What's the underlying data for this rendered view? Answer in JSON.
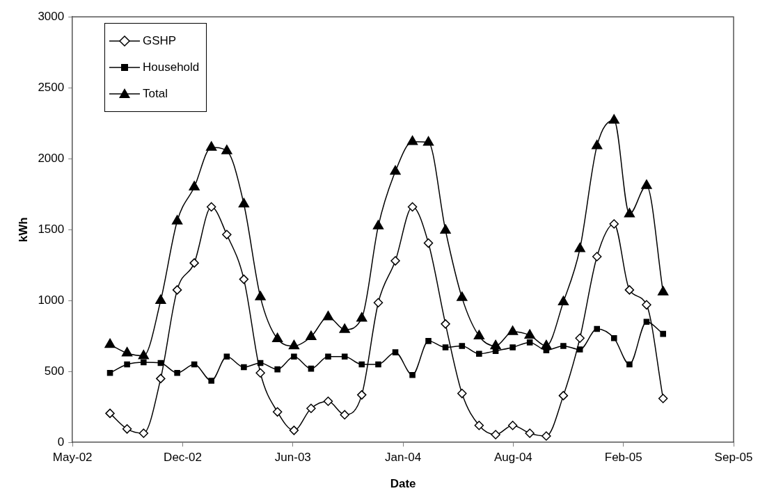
{
  "chart_data": {
    "type": "line",
    "xlabel": "Date",
    "ylabel": "kWh",
    "x": [
      "2002-07-31",
      "2002-08-31",
      "2002-09-30",
      "2002-10-31",
      "2002-11-30",
      "2002-12-31",
      "2003-01-31",
      "2003-02-28",
      "2003-03-31",
      "2003-04-30",
      "2003-05-31",
      "2003-06-30",
      "2003-07-31",
      "2003-08-31",
      "2003-09-30",
      "2003-10-31",
      "2003-11-30",
      "2003-12-31",
      "2004-01-31",
      "2004-02-29",
      "2004-03-31",
      "2004-04-30",
      "2004-05-31",
      "2004-06-30",
      "2004-07-31",
      "2004-08-31",
      "2004-09-30",
      "2004-10-31",
      "2004-11-30",
      "2004-12-31",
      "2005-01-31",
      "2005-02-28",
      "2005-03-31",
      "2005-04-30"
    ],
    "series": [
      {
        "name": "GSHP",
        "color": "#000000",
        "marker": "diamond",
        "values": [
          205,
          95,
          65,
          450,
          1075,
          1265,
          1660,
          1465,
          1150,
          490,
          215,
          85,
          240,
          290,
          195,
          335,
          985,
          1280,
          1660,
          1405,
          835,
          345,
          120,
          55,
          120,
          65,
          45,
          330,
          735,
          1310,
          1540,
          1075,
          970,
          310
        ]
      },
      {
        "name": "Household",
        "color": "#000000",
        "marker": "square",
        "values": [
          490,
          550,
          565,
          560,
          490,
          550,
          435,
          605,
          530,
          560,
          515,
          605,
          520,
          605,
          605,
          550,
          550,
          635,
          475,
          715,
          670,
          680,
          625,
          645,
          670,
          705,
          650,
          680,
          655,
          800,
          735,
          550,
          850,
          765
        ]
      },
      {
        "name": "Total",
        "color": "#000000",
        "marker": "triangle",
        "values": [
          690,
          630,
          610,
          1000,
          1560,
          1800,
          2080,
          2055,
          1680,
          1025,
          730,
          680,
          745,
          885,
          795,
          875,
          1525,
          1910,
          2120,
          2115,
          1495,
          1020,
          750,
          680,
          780,
          755,
          680,
          990,
          1365,
          2090,
          2270,
          1610,
          1810,
          1060
        ]
      }
    ],
    "xlim": [
      "2002-05-24",
      "2005-09-05"
    ],
    "xticks": [
      {
        "value": "2002-05-24",
        "label": "May-02"
      },
      {
        "value": "2002-12-10",
        "label": "Dec-02"
      },
      {
        "value": "2003-06-28",
        "label": "Jun-03"
      },
      {
        "value": "2004-01-14",
        "label": "Jan-04"
      },
      {
        "value": "2004-08-01",
        "label": "Aug-04"
      },
      {
        "value": "2005-02-17",
        "label": "Feb-05"
      },
      {
        "value": "2005-09-05",
        "label": "Sep-05"
      }
    ],
    "ylim": [
      0,
      3000
    ],
    "yticks": [
      0,
      500,
      1000,
      1500,
      2000,
      2500,
      3000
    ],
    "grid": false,
    "legend": "top left",
    "line_style": "solid"
  }
}
